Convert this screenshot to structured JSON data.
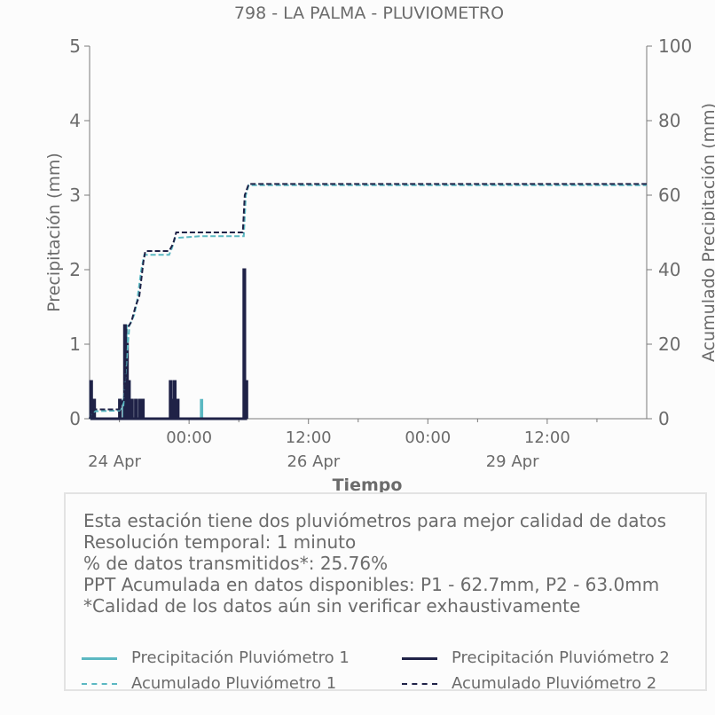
{
  "chart_data": {
    "type": "line",
    "title": "798 - LA PALMA - PLUVIOMETRO",
    "xlabel": "Tiempo",
    "ylabel_left": "Precipitación (mm)",
    "ylabel_right": "Acumulado Precipitación (mm)",
    "ylim_left": [
      0,
      5
    ],
    "ylim_right": [
      0,
      100
    ],
    "yticks_left": [
      "0",
      "1",
      "2",
      "3",
      "4",
      "5"
    ],
    "yticks_right": [
      "0",
      "20",
      "40",
      "60",
      "80",
      "100"
    ],
    "x_axis_units": "hours since 2021-04-23 14:00",
    "xlim_hours": [
      0,
      56
    ],
    "xticks_major": [
      {
        "hour": 10,
        "label": "00:00"
      },
      {
        "hour": 22,
        "label": "12:00"
      },
      {
        "hour": 34,
        "label": "00:00"
      },
      {
        "hour": 46,
        "label": "12:00"
      }
    ],
    "xticks_minor": [
      {
        "hour": 3,
        "label": ""
      },
      {
        "hour": 15,
        "label": ""
      },
      {
        "hour": 27,
        "label": ""
      },
      {
        "hour": 39,
        "label": ""
      },
      {
        "hour": 51,
        "label": ""
      }
    ],
    "date_labels": [
      {
        "hour": 2.5,
        "label": "24 Apr"
      },
      {
        "hour": 22.5,
        "label": "26 Apr"
      },
      {
        "hour": 42.5,
        "label": "29 Apr"
      }
    ],
    "grid": false,
    "series": [
      {
        "name": "Precipitación Pluviómetro 1",
        "color": "#5bb8c2",
        "style": "solid",
        "axis": "left",
        "points": [
          [
            0.1,
            0.5
          ],
          [
            0.4,
            0.25
          ],
          [
            3.4,
            0.25
          ],
          [
            3.6,
            1.25
          ],
          [
            3.7,
            1.0
          ],
          [
            3.9,
            0.5
          ],
          [
            4.2,
            0.25
          ],
          [
            5.0,
            0.25
          ],
          [
            8.1,
            0.5
          ],
          [
            8.5,
            0.5
          ],
          [
            11.2,
            0.25
          ],
          [
            15.5,
            2.0
          ],
          [
            15.7,
            0.5
          ]
        ]
      },
      {
        "name": "Precipitación Pluviómetro 2",
        "color": "#1f2247",
        "style": "solid",
        "axis": "left",
        "points": [
          [
            0.1,
            0.5
          ],
          [
            0.4,
            0.25
          ],
          [
            3.0,
            0.25
          ],
          [
            3.5,
            1.25
          ],
          [
            3.7,
            1.0
          ],
          [
            3.9,
            0.5
          ],
          [
            4.2,
            0.25
          ],
          [
            4.6,
            0.25
          ],
          [
            5.0,
            0.25
          ],
          [
            5.3,
            0.25
          ],
          [
            8.1,
            0.5
          ],
          [
            8.4,
            0.25
          ],
          [
            8.5,
            0.5
          ],
          [
            8.8,
            0.25
          ],
          [
            15.5,
            2.0
          ],
          [
            15.7,
            0.5
          ]
        ]
      },
      {
        "name": "Acumulado Pluviómetro 1",
        "color": "#5bb8c2",
        "style": "dashed",
        "axis": "right",
        "points": [
          [
            0,
            0
          ],
          [
            0.1,
            1
          ],
          [
            0.5,
            2
          ],
          [
            3.0,
            2.2
          ],
          [
            3.4,
            3.5
          ],
          [
            3.6,
            12
          ],
          [
            4.0,
            25
          ],
          [
            4.5,
            28
          ],
          [
            4.8,
            32
          ],
          [
            5.2,
            40
          ],
          [
            5.5,
            44
          ],
          [
            8.0,
            44
          ],
          [
            8.3,
            46
          ],
          [
            8.6,
            48.5
          ],
          [
            11.2,
            49
          ],
          [
            15.5,
            49
          ],
          [
            15.7,
            60
          ],
          [
            16.0,
            62.7
          ],
          [
            56,
            62.7
          ]
        ]
      },
      {
        "name": "Acumulado Pluviómetro 2",
        "color": "#1f2247",
        "style": "dashed",
        "axis": "right",
        "points": [
          [
            0,
            0
          ],
          [
            0.1,
            1
          ],
          [
            0.5,
            2.5
          ],
          [
            3.0,
            2.5
          ],
          [
            3.5,
            6
          ],
          [
            3.7,
            24
          ],
          [
            4.2,
            26
          ],
          [
            4.6,
            30
          ],
          [
            5.0,
            33
          ],
          [
            5.4,
            42
          ],
          [
            5.6,
            45
          ],
          [
            8.0,
            45
          ],
          [
            8.4,
            47
          ],
          [
            8.7,
            50
          ],
          [
            15.4,
            50
          ],
          [
            15.6,
            60
          ],
          [
            16.0,
            63.0
          ],
          [
            56,
            63.0
          ]
        ]
      }
    ]
  },
  "info": {
    "lines": [
      "Esta estación tiene dos pluviómetros para mejor calidad de datos",
      "Resolución temporal: 1 minuto",
      "% de datos transmitidos*: 25.76%",
      "PPT Acumulada en datos disponibles: P1 - 62.7mm, P2 - 63.0mm",
      "*Calidad de los datos aún sin verificar exhaustivamente"
    ]
  },
  "legend": {
    "items": [
      {
        "label": "Precipitación Pluviómetro 1",
        "color": "#5bb8c2",
        "style": "solid"
      },
      {
        "label": "Precipitación Pluviómetro 2",
        "color": "#1f2247",
        "style": "solid"
      },
      {
        "label": "Acumulado Pluviómetro 1",
        "color": "#5bb8c2",
        "style": "dashed"
      },
      {
        "label": "Acumulado Pluviómetro 2",
        "color": "#1f2247",
        "style": "dashed"
      }
    ]
  }
}
